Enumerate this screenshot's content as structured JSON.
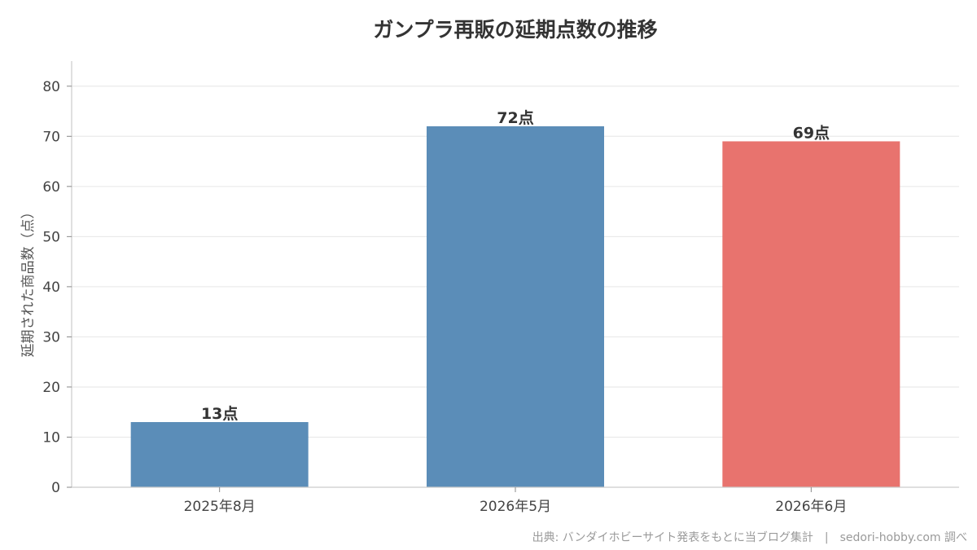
{
  "chart_data": {
    "type": "bar",
    "title": "ガンプラ再販の延期点数の推移",
    "ylabel": "延期された商品数（点）",
    "xlabel": "",
    "categories": [
      "2025年8月",
      "2026年5月",
      "2026年6月"
    ],
    "values": [
      13,
      72,
      69
    ],
    "data_labels": [
      "13点",
      "72点",
      "69点"
    ],
    "bar_colors": [
      "#5b8db8",
      "#5b8db8",
      "#e8736e"
    ],
    "ylim": [
      0,
      85
    ],
    "yticks": [
      0,
      10,
      20,
      30,
      40,
      50,
      60,
      70,
      80
    ],
    "grid": "horizontal",
    "legend": "none"
  },
  "source_note": "出典: バンダイホビーサイト発表をもとに当ブログ集計　|　sedori-hobby.com 調べ"
}
